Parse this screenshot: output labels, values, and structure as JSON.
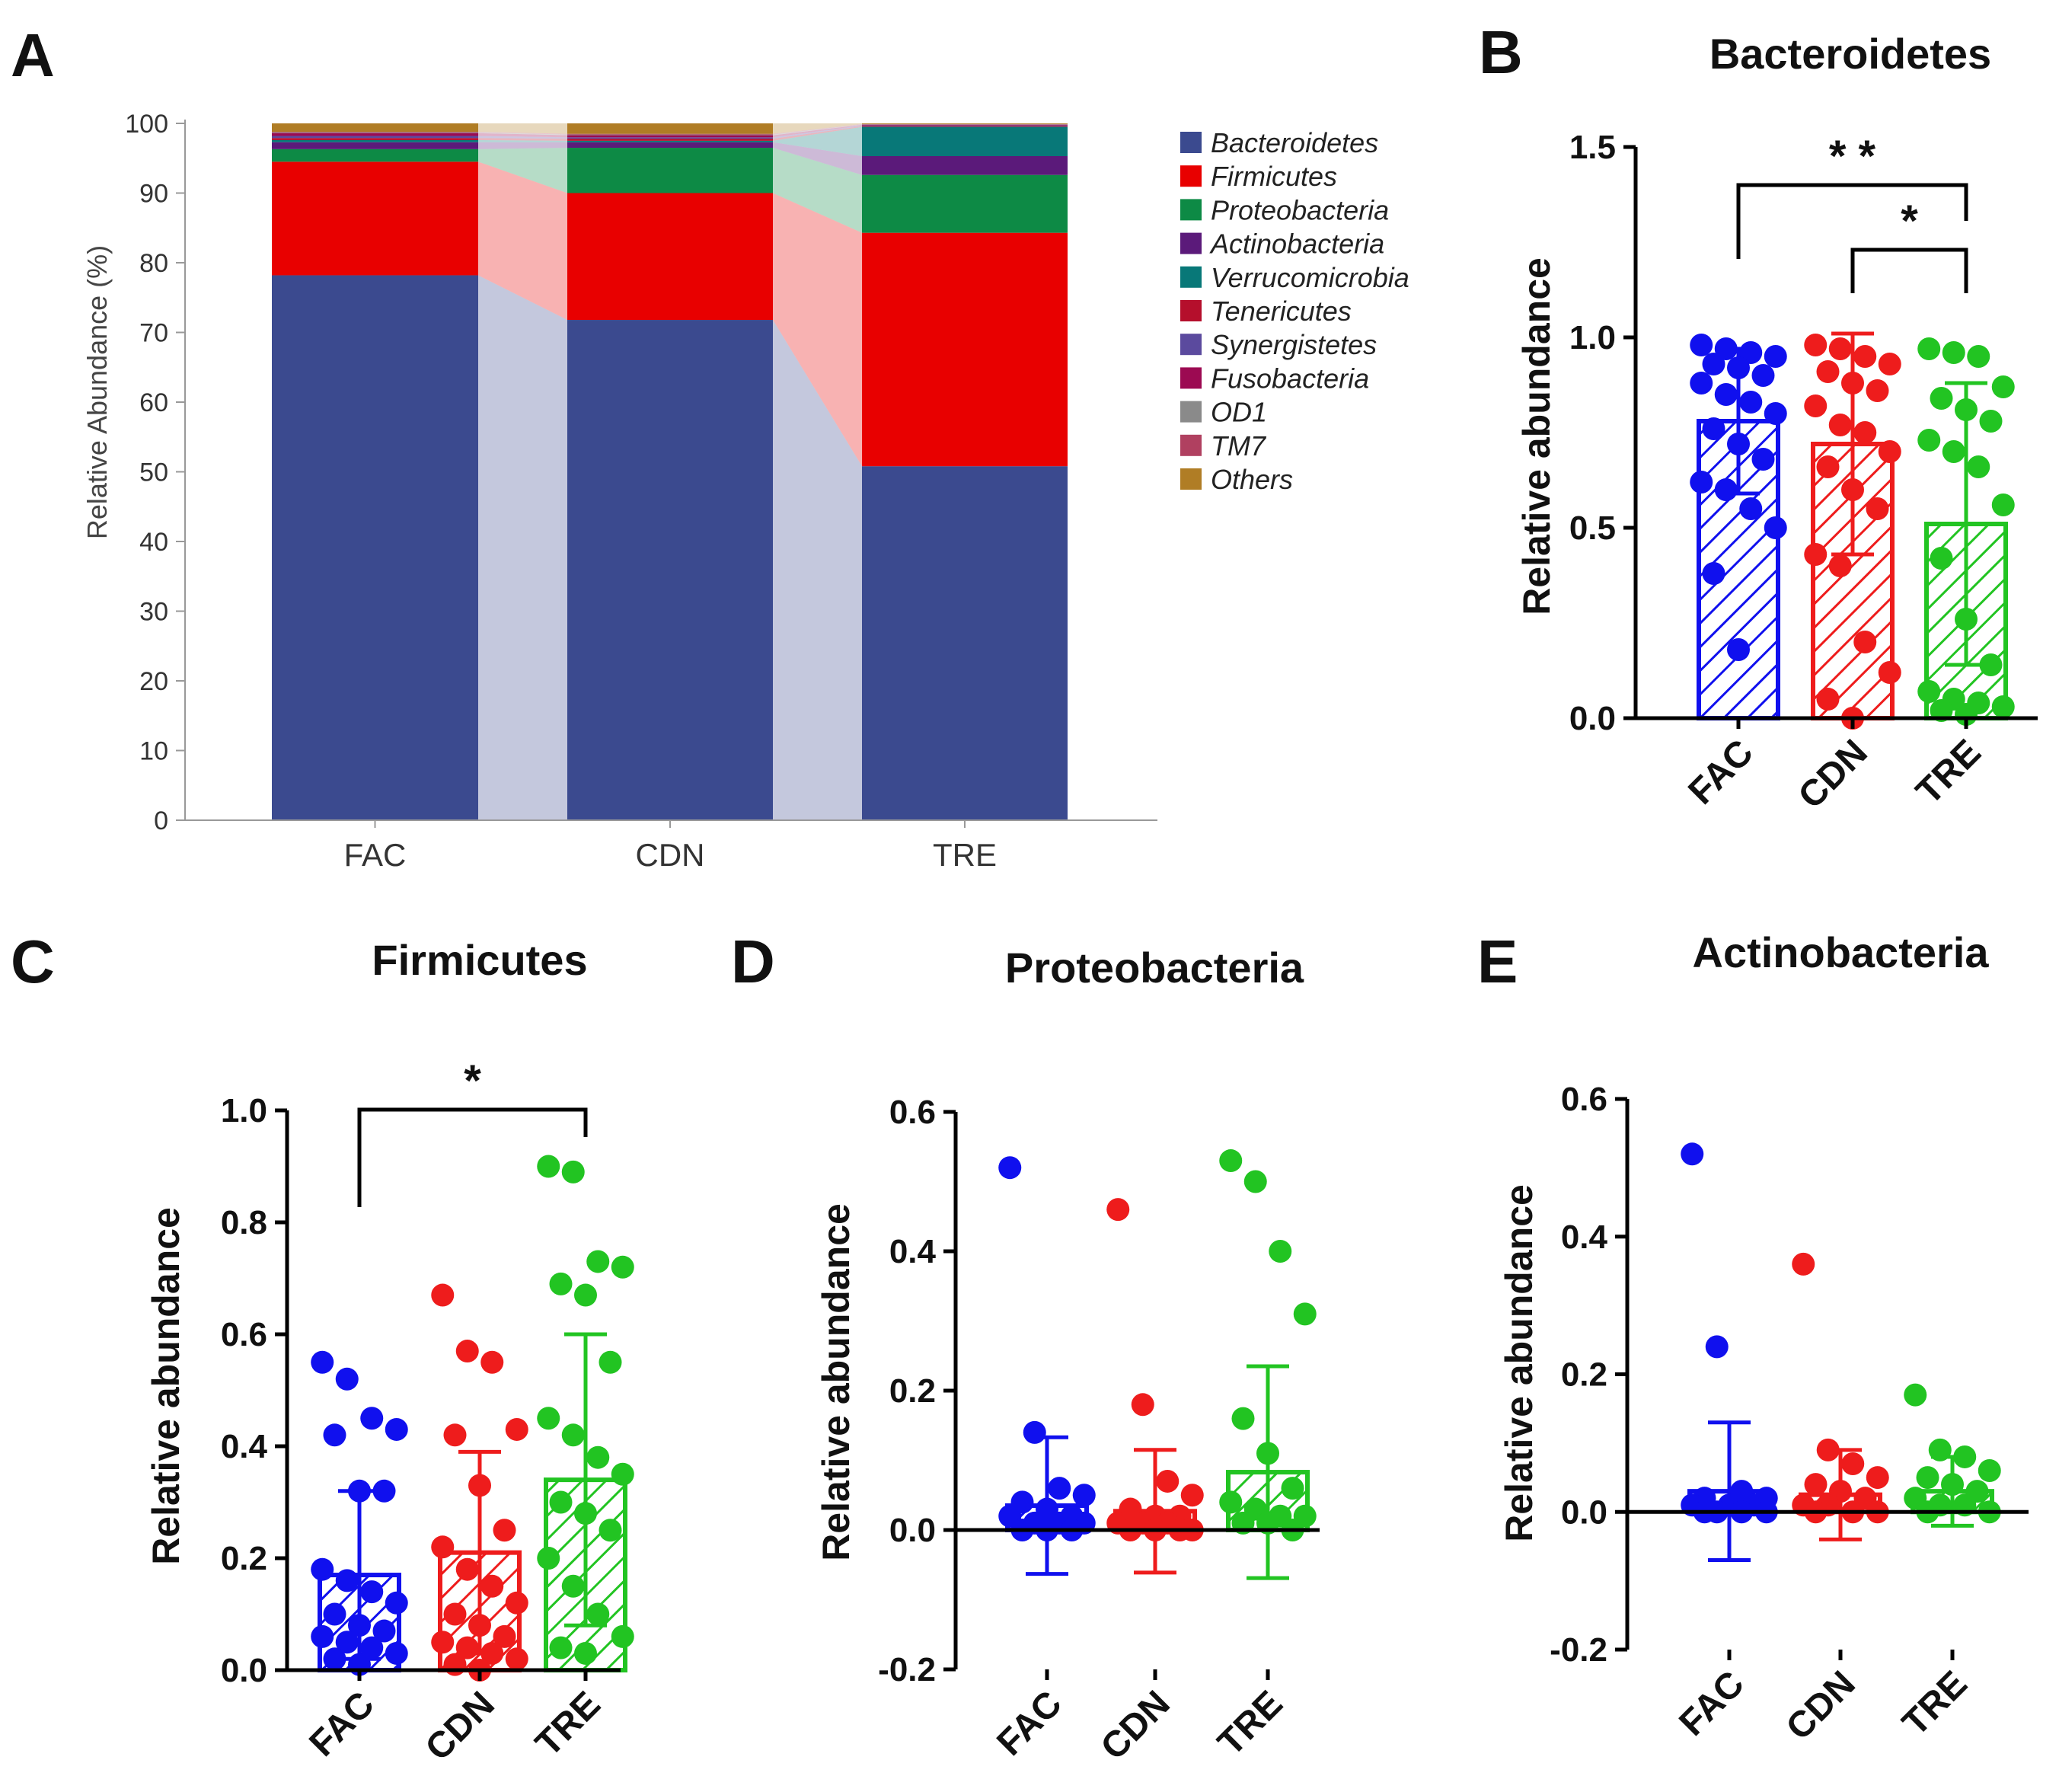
{
  "panel_letters": {
    "a": "A",
    "b": "B",
    "c": "C",
    "d": "D",
    "e": "E"
  },
  "colors": {
    "FAC": "#1010ee",
    "CDN": "#ee1c1c",
    "TRE": "#22c422",
    "Bacteroidetes": "#3b4a8f",
    "Firmicutes": "#e80000",
    "Proteobacteria": "#0d8a45",
    "Actinobacteria": "#5b1a7a",
    "Verrucomicrobia": "#087878",
    "Tenericutes": "#b50f2c",
    "Synergistetes": "#5b4a9e",
    "Fusobacteria": "#9c0a52",
    "OD1": "#8a8a8a",
    "TM7": "#b04060",
    "Others": "#b07d25"
  },
  "chart_data": [
    {
      "id": "A",
      "type": "bar",
      "stacked": true,
      "title": "",
      "xlabel": "",
      "ylabel": "Relative Abundance (%)",
      "ylim": [
        0,
        100
      ],
      "yticks": [
        "0",
        "10",
        "20",
        "30",
        "40",
        "50",
        "60",
        "70",
        "80",
        "90",
        "100"
      ],
      "categories": [
        "FAC",
        "CDN",
        "TRE"
      ],
      "series": [
        {
          "name": "Bacteroidetes",
          "values": [
            78.2,
            71.8,
            50.8
          ]
        },
        {
          "name": "Firmicutes",
          "values": [
            16.3,
            18.2,
            33.5
          ]
        },
        {
          "name": "Proteobacteria",
          "values": [
            1.8,
            6.5,
            8.3
          ]
        },
        {
          "name": "Actinobacteria",
          "values": [
            1.0,
            0.8,
            2.7
          ]
        },
        {
          "name": "Verrucomicrobia",
          "values": [
            0.3,
            0.2,
            4.2
          ]
        },
        {
          "name": "Tenericutes",
          "values": [
            0.3,
            0.3,
            0.1
          ]
        },
        {
          "name": "Synergistetes",
          "values": [
            0.3,
            0.2,
            0.1
          ]
        },
        {
          "name": "Fusobacteria",
          "values": [
            0.4,
            0.3,
            0.1
          ]
        },
        {
          "name": "OD1",
          "values": [
            0.1,
            0.1,
            0.05
          ]
        },
        {
          "name": "TM7",
          "values": [
            0.1,
            0.1,
            0.05
          ]
        },
        {
          "name": "Others",
          "values": [
            1.2,
            1.5,
            0.1
          ]
        }
      ],
      "legend": [
        "Bacteroidetes",
        "Firmicutes",
        "Proteobacteria",
        "Actinobacteria",
        "Verrucomicrobia",
        "Tenericutes",
        "Synergistetes",
        "Fusobacteria",
        "OD1",
        "TM7",
        "Others"
      ],
      "legend_position": "right"
    },
    {
      "id": "B",
      "type": "bar",
      "title": "Bacteroidetes",
      "ylabel": "Relative abundance",
      "ylim": [
        0,
        1.5
      ],
      "yticks": [
        "0.0",
        "0.5",
        "1.0",
        "1.5"
      ],
      "categories": [
        "FAC",
        "CDN",
        "TRE"
      ],
      "values": [
        0.78,
        0.72,
        0.51
      ],
      "sd": [
        0.19,
        0.29,
        0.37
      ],
      "points": [
        [
          0.98,
          0.97,
          0.96,
          0.95,
          0.93,
          0.92,
          0.9,
          0.88,
          0.85,
          0.83,
          0.8,
          0.76,
          0.72,
          0.68,
          0.62,
          0.6,
          0.55,
          0.5,
          0.38,
          0.18
        ],
        [
          0.98,
          0.97,
          0.95,
          0.93,
          0.91,
          0.88,
          0.86,
          0.82,
          0.77,
          0.75,
          0.7,
          0.66,
          0.6,
          0.55,
          0.43,
          0.4,
          0.2,
          0.12,
          0.05,
          0.0
        ],
        [
          0.97,
          0.96,
          0.95,
          0.87,
          0.84,
          0.81,
          0.78,
          0.73,
          0.7,
          0.66,
          0.56,
          0.42,
          0.26,
          0.14,
          0.07,
          0.05,
          0.04,
          0.03,
          0.02,
          0.01
        ]
      ],
      "significance": [
        {
          "from": "FAC",
          "to": "TRE",
          "label": "* *"
        },
        {
          "from": "CDN",
          "to": "TRE",
          "label": "*"
        }
      ]
    },
    {
      "id": "C",
      "type": "bar",
      "title": "Firmicutes",
      "ylabel": "Relative abundance",
      "ylim": [
        0,
        1.0
      ],
      "yticks": [
        "0.0",
        "0.2",
        "0.4",
        "0.6",
        "0.8",
        "1.0"
      ],
      "categories": [
        "FAC",
        "CDN",
        "TRE"
      ],
      "values": [
        0.17,
        0.21,
        0.34
      ],
      "sd": [
        0.15,
        0.18,
        0.26
      ],
      "points": [
        [
          0.55,
          0.52,
          0.45,
          0.43,
          0.42,
          0.32,
          0.32,
          0.18,
          0.16,
          0.14,
          0.12,
          0.1,
          0.08,
          0.07,
          0.06,
          0.05,
          0.04,
          0.03,
          0.02,
          0.01
        ],
        [
          0.67,
          0.57,
          0.55,
          0.43,
          0.42,
          0.33,
          0.25,
          0.22,
          0.18,
          0.15,
          0.12,
          0.1,
          0.08,
          0.06,
          0.05,
          0.04,
          0.03,
          0.02,
          0.01,
          0.0
        ],
        [
          0.9,
          0.89,
          0.73,
          0.72,
          0.69,
          0.67,
          0.55,
          0.45,
          0.42,
          0.38,
          0.35,
          0.3,
          0.28,
          0.25,
          0.2,
          0.15,
          0.1,
          0.06,
          0.04,
          0.03
        ]
      ],
      "significance": [
        {
          "from": "FAC",
          "to": "TRE",
          "label": "*"
        }
      ]
    },
    {
      "id": "D",
      "type": "bar",
      "title": "Proteobacteria",
      "ylabel": "Relative abundance",
      "ylim": [
        -0.2,
        0.6
      ],
      "yticks": [
        "-0.2",
        "0.0",
        "0.2",
        "0.4",
        "0.6"
      ],
      "categories": [
        "FAC",
        "CDN",
        "TRE"
      ],
      "values": [
        0.035,
        0.027,
        0.083
      ],
      "sd": [
        0.098,
        0.088,
        0.152
      ],
      "points": [
        [
          0.52,
          0.14,
          0.06,
          0.05,
          0.04,
          0.03,
          0.02,
          0.02,
          0.01,
          0.01,
          0.01,
          0.0,
          0.0,
          0.0
        ],
        [
          0.46,
          0.18,
          0.07,
          0.05,
          0.03,
          0.02,
          0.02,
          0.01,
          0.01,
          0.01,
          0.0,
          0.0,
          0.0,
          0.0
        ],
        [
          0.53,
          0.5,
          0.4,
          0.31,
          0.16,
          0.11,
          0.06,
          0.04,
          0.03,
          0.02,
          0.02,
          0.01,
          0.01,
          0.0
        ]
      ],
      "significance": []
    },
    {
      "id": "E",
      "type": "bar",
      "title": "Actinobacteria",
      "ylabel": "Relative abundance",
      "ylim": [
        -0.2,
        0.6
      ],
      "yticks": [
        "-0.2",
        "0.0",
        "0.2",
        "0.4",
        "0.6"
      ],
      "categories": [
        "FAC",
        "CDN",
        "TRE"
      ],
      "values": [
        0.03,
        0.025,
        0.03
      ],
      "sd": [
        0.1,
        0.065,
        0.05
      ],
      "points": [
        [
          0.52,
          0.24,
          0.03,
          0.02,
          0.02,
          0.01,
          0.01,
          0.01,
          0.0,
          0.0,
          0.0,
          0.0
        ],
        [
          0.36,
          0.09,
          0.07,
          0.05,
          0.04,
          0.03,
          0.02,
          0.01,
          0.01,
          0.0,
          0.0,
          0.0
        ],
        [
          0.17,
          0.09,
          0.08,
          0.06,
          0.05,
          0.04,
          0.03,
          0.02,
          0.01,
          0.01,
          0.0,
          0.0
        ]
      ],
      "significance": []
    }
  ]
}
